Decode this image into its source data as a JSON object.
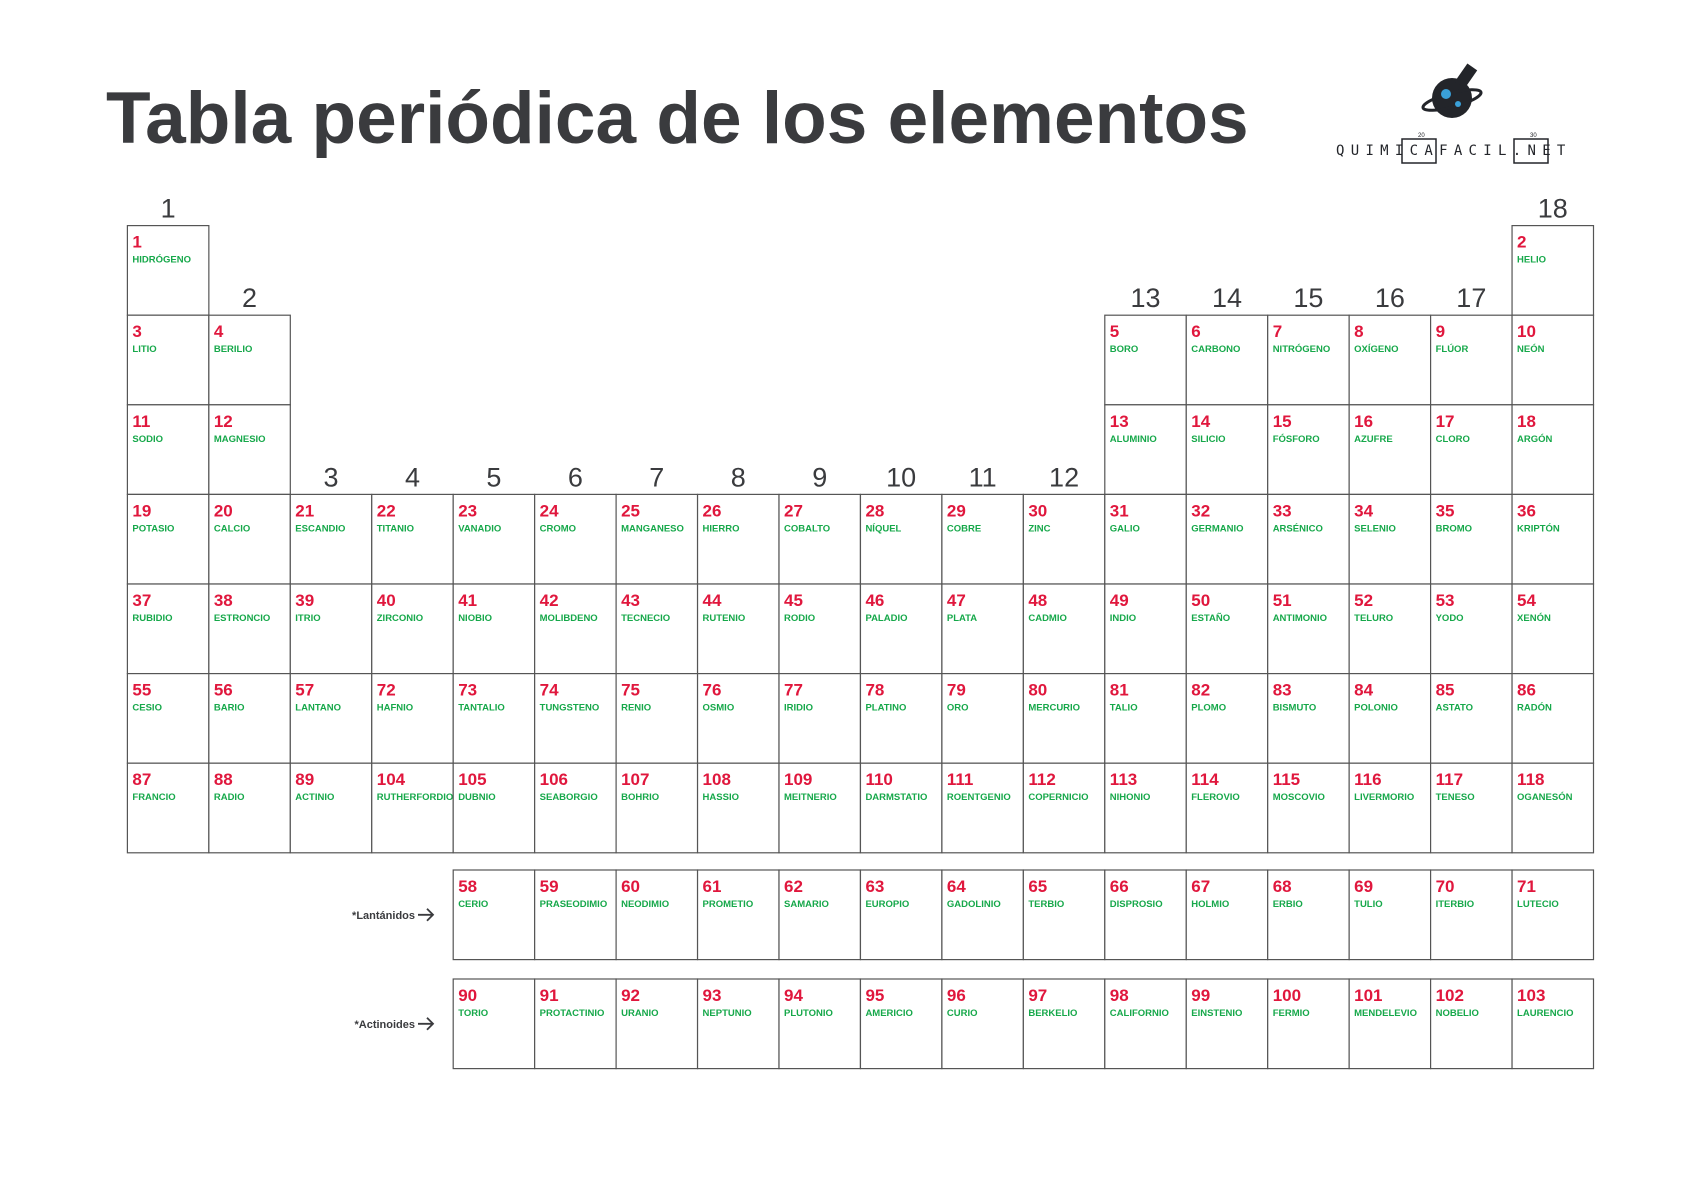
{
  "title": "Tabla periódica de los elementos",
  "logo": {
    "text": "QUIMICAFACIL.NET",
    "marks": [
      "20",
      "30"
    ]
  },
  "groups": [
    1,
    2,
    3,
    4,
    5,
    6,
    7,
    8,
    9,
    10,
    11,
    12,
    13,
    14,
    15,
    16,
    17,
    18
  ],
  "main_table": [
    [
      {
        "number": 1,
        "name": "HIDRÓGENO"
      },
      {
        "number": 2,
        "name": "HELIO"
      }
    ],
    [
      {
        "number": 3,
        "name": "LITIO"
      },
      {
        "number": 4,
        "name": "BERILIO"
      },
      {
        "number": 5,
        "name": "BORO"
      },
      {
        "number": 6,
        "name": "CARBONO"
      },
      {
        "number": 7,
        "name": "NITRÓGENO"
      },
      {
        "number": 8,
        "name": "OXÍGENO"
      },
      {
        "number": 9,
        "name": "FLÚOR"
      },
      {
        "number": 10,
        "name": "NEÓN"
      }
    ],
    [
      {
        "number": 11,
        "name": "SODIO"
      },
      {
        "number": 12,
        "name": "MAGNESIO"
      },
      {
        "number": 13,
        "name": "ALUMINIO"
      },
      {
        "number": 14,
        "name": "SILICIO"
      },
      {
        "number": 15,
        "name": "FÓSFORO"
      },
      {
        "number": 16,
        "name": "AZUFRE"
      },
      {
        "number": 17,
        "name": "CLORO"
      },
      {
        "number": 18,
        "name": "ARGÓN"
      }
    ],
    [
      {
        "number": 19,
        "name": "POTASIO"
      },
      {
        "number": 20,
        "name": "CALCIO"
      },
      {
        "number": 21,
        "name": "ESCANDIO"
      },
      {
        "number": 22,
        "name": "TITANIO"
      },
      {
        "number": 23,
        "name": "VANADIO"
      },
      {
        "number": 24,
        "name": "CROMO"
      },
      {
        "number": 25,
        "name": "MANGANESO"
      },
      {
        "number": 26,
        "name": "HIERRO"
      },
      {
        "number": 27,
        "name": "COBALTO"
      },
      {
        "number": 28,
        "name": "NÍQUEL"
      },
      {
        "number": 29,
        "name": "COBRE"
      },
      {
        "number": 30,
        "name": "ZINC"
      },
      {
        "number": 31,
        "name": "GALIO"
      },
      {
        "number": 32,
        "name": "GERMANIO"
      },
      {
        "number": 33,
        "name": "ARSÉNICO"
      },
      {
        "number": 34,
        "name": "SELENIO"
      },
      {
        "number": 35,
        "name": "BROMO"
      },
      {
        "number": 36,
        "name": "KRIPTÓN"
      }
    ],
    [
      {
        "number": 37,
        "name": "RUBIDIO"
      },
      {
        "number": 38,
        "name": "ESTRONCIO"
      },
      {
        "number": 39,
        "name": "ITRIO"
      },
      {
        "number": 40,
        "name": "ZIRCONIO"
      },
      {
        "number": 41,
        "name": "NIOBIO"
      },
      {
        "number": 42,
        "name": "MOLIBDENO"
      },
      {
        "number": 43,
        "name": "TECNECIO"
      },
      {
        "number": 44,
        "name": "RUTENIO"
      },
      {
        "number": 45,
        "name": "RODIO"
      },
      {
        "number": 46,
        "name": "PALADIO"
      },
      {
        "number": 47,
        "name": "PLATA"
      },
      {
        "number": 48,
        "name": "CADMIO"
      },
      {
        "number": 49,
        "name": "INDIO"
      },
      {
        "number": 50,
        "name": "ESTAÑO"
      },
      {
        "number": 51,
        "name": "ANTIMONIO"
      },
      {
        "number": 52,
        "name": "TELURO"
      },
      {
        "number": 53,
        "name": "YODO"
      },
      {
        "number": 54,
        "name": "XENÓN"
      }
    ],
    [
      {
        "number": 55,
        "name": "CESIO"
      },
      {
        "number": 56,
        "name": "BARIO"
      },
      {
        "number": 57,
        "name": "LANTANO"
      },
      {
        "number": 72,
        "name": "HAFNIO"
      },
      {
        "number": 73,
        "name": "TANTALIO"
      },
      {
        "number": 74,
        "name": "TUNGSTENO"
      },
      {
        "number": 75,
        "name": "RENIO"
      },
      {
        "number": 76,
        "name": "OSMIO"
      },
      {
        "number": 77,
        "name": "IRIDIO"
      },
      {
        "number": 78,
        "name": "PLATINO"
      },
      {
        "number": 79,
        "name": "ORO"
      },
      {
        "number": 80,
        "name": "MERCURIO"
      },
      {
        "number": 81,
        "name": "TALIO"
      },
      {
        "number": 82,
        "name": "PLOMO"
      },
      {
        "number": 83,
        "name": "BISMUTO"
      },
      {
        "number": 84,
        "name": "POLONIO"
      },
      {
        "number": 85,
        "name": "ASTATO"
      },
      {
        "number": 86,
        "name": "RADÓN"
      }
    ],
    [
      {
        "number": 87,
        "name": "FRANCIO"
      },
      {
        "number": 88,
        "name": "RADIO"
      },
      {
        "number": 89,
        "name": "ACTINIO"
      },
      {
        "number": 104,
        "name": "RUTHERFORDIO"
      },
      {
        "number": 105,
        "name": "DUBNIO"
      },
      {
        "number": 106,
        "name": "SEABORGIO"
      },
      {
        "number": 107,
        "name": "BOHRIO"
      },
      {
        "number": 108,
        "name": "HASSIO"
      },
      {
        "number": 109,
        "name": "MEITNERIO"
      },
      {
        "number": 110,
        "name": "DARMSTATIO"
      },
      {
        "number": 111,
        "name": "ROENTGENIO"
      },
      {
        "number": 112,
        "name": "COPERNICIO"
      },
      {
        "number": 113,
        "name": "NIHONIO"
      },
      {
        "number": 114,
        "name": "FLEROVIO"
      },
      {
        "number": 115,
        "name": "MOSCOVIO"
      },
      {
        "number": 116,
        "name": "LIVERMORIO"
      },
      {
        "number": 117,
        "name": "TENESO"
      },
      {
        "number": 118,
        "name": "OGANESÓN"
      }
    ]
  ],
  "series": [
    {
      "label": "*Lantánidos",
      "elements": [
        {
          "number": 58,
          "name": "CERIO"
        },
        {
          "number": 59,
          "name": "PRASEODIMIO"
        },
        {
          "number": 60,
          "name": "NEODIMIO"
        },
        {
          "number": 61,
          "name": "PROMETIO"
        },
        {
          "number": 62,
          "name": "SAMARIO"
        },
        {
          "number": 63,
          "name": "EUROPIO"
        },
        {
          "number": 64,
          "name": "GADOLINIO"
        },
        {
          "number": 65,
          "name": "TERBIO"
        },
        {
          "number": 66,
          "name": "DISPROSIO"
        },
        {
          "number": 67,
          "name": "HOLMIO"
        },
        {
          "number": 68,
          "name": "ERBIO"
        },
        {
          "number": 69,
          "name": "TULIO"
        },
        {
          "number": 70,
          "name": "ITERBIO"
        },
        {
          "number": 71,
          "name": "LUTECIO"
        }
      ]
    },
    {
      "label": "*Actinoides",
      "elements": [
        {
          "number": 90,
          "name": "TORIO"
        },
        {
          "number": 91,
          "name": "PROTACTINIO"
        },
        {
          "number": 92,
          "name": "URANIO"
        },
        {
          "number": 93,
          "name": "NEPTUNIO"
        },
        {
          "number": 94,
          "name": "PLUTONIO"
        },
        {
          "number": 95,
          "name": "AMERICIO"
        },
        {
          "number": 96,
          "name": "CURIO"
        },
        {
          "number": 97,
          "name": "BERKELIO"
        },
        {
          "number": 98,
          "name": "CALIFORNIO"
        },
        {
          "number": 99,
          "name": "EINSTENIO"
        },
        {
          "number": 100,
          "name": "FERMIO"
        },
        {
          "number": 101,
          "name": "MENDELEVIO"
        },
        {
          "number": 102,
          "name": "NOBELIO"
        },
        {
          "number": 103,
          "name": "LAURENCIO"
        }
      ]
    }
  ]
}
